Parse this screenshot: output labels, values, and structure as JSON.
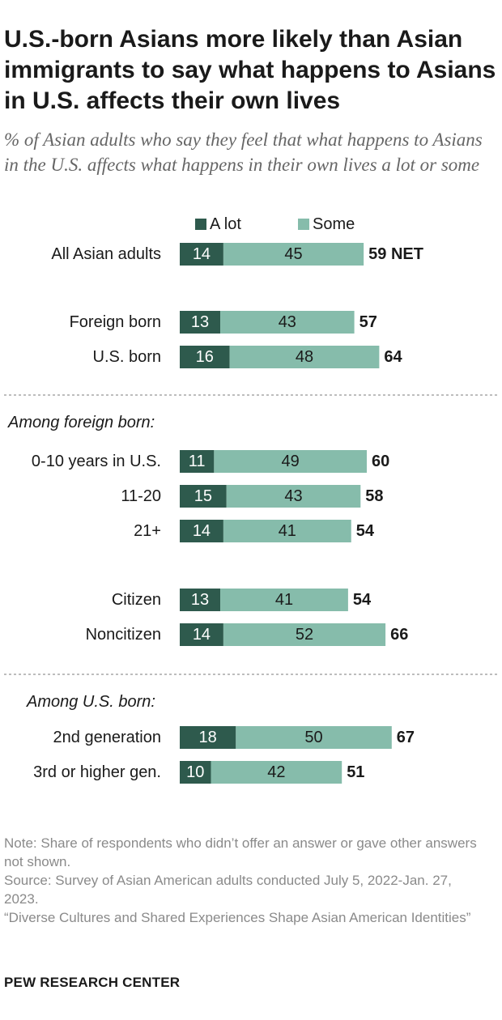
{
  "chart_data": {
    "type": "bar",
    "orientation": "horizontal",
    "stacked": true,
    "title": "U.S.-born Asians more likely than Asian immigrants to say what happens to Asians in U.S. affects their own lives",
    "subtitle": "% of Asian adults who say they feel that what happens to Asians in the U.S. affects what happens in their own lives a lot or some",
    "legend_position": "top",
    "series": [
      {
        "name": "A lot",
        "color": "#2e5a4d"
      },
      {
        "name": "Some",
        "color": "#86bcab"
      }
    ],
    "groups": [
      {
        "heading": "",
        "divider_before": false,
        "rows": [
          {
            "label": "All Asian adults",
            "a_lot": 14,
            "some": 45,
            "net": "59 NET"
          }
        ]
      },
      {
        "heading": "",
        "divider_before": false,
        "rows": [
          {
            "label": "Foreign born",
            "a_lot": 13,
            "some": 43,
            "net": "57"
          },
          {
            "label": "U.S. born",
            "a_lot": 16,
            "some": 48,
            "net": "64"
          }
        ]
      },
      {
        "heading": "Among foreign born:",
        "divider_before": true,
        "rows": [
          {
            "label": "0-10 years in U.S.",
            "a_lot": 11,
            "some": 49,
            "net": "60"
          },
          {
            "label": "11-20",
            "a_lot": 15,
            "some": 43,
            "net": "58"
          },
          {
            "label": "21+",
            "a_lot": 14,
            "some": 41,
            "net": "54"
          }
        ]
      },
      {
        "heading": "",
        "divider_before": false,
        "rows": [
          {
            "label": "Citizen",
            "a_lot": 13,
            "some": 41,
            "net": "54"
          },
          {
            "label": "Noncitizen",
            "a_lot": 14,
            "some": 52,
            "net": "66"
          }
        ]
      },
      {
        "heading": "Among U.S. born:",
        "divider_before": true,
        "rows": [
          {
            "label": "2nd generation",
            "a_lot": 18,
            "some": 50,
            "net": "67"
          },
          {
            "label": "3rd or higher gen.",
            "a_lot": 10,
            "some": 42,
            "net": "51"
          }
        ]
      }
    ]
  },
  "footer": {
    "note": "Note: Share of respondents who didn’t offer an answer or gave other answers not shown.",
    "source": "Source: Survey of Asian American adults conducted July 5, 2022-Jan. 27, 2023.",
    "report": "“Diverse Cultures and Shared Experiences Shape Asian American Identities”",
    "brand": "PEW RESEARCH CENTER"
  }
}
